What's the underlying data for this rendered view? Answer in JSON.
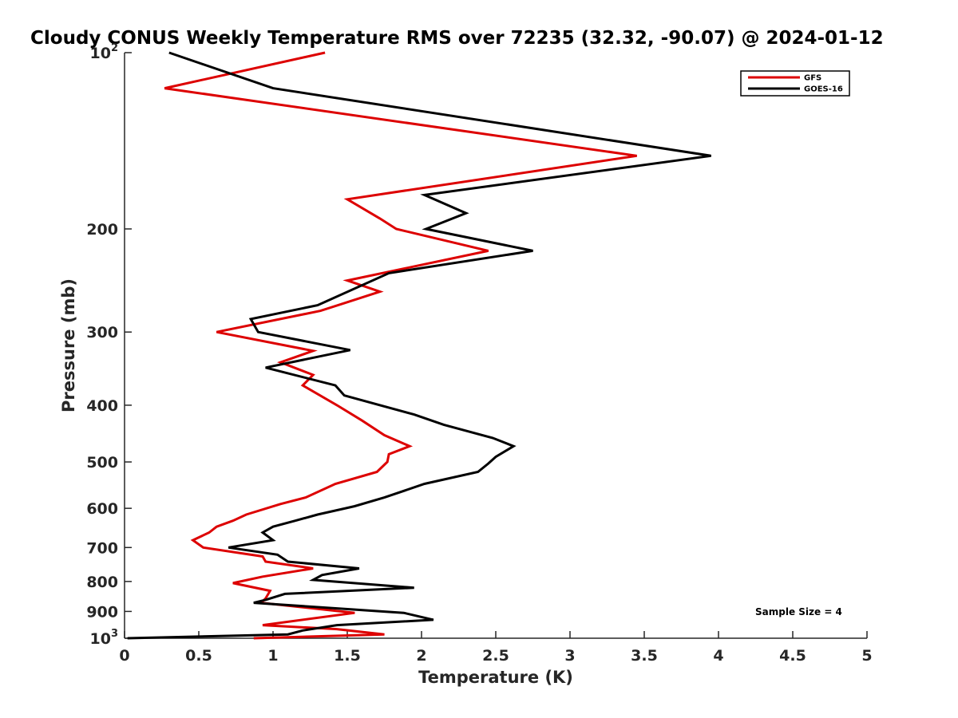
{
  "chart_data": {
    "type": "line",
    "title": "Cloudy CONUS Weekly Temperature RMS over 72235 (32.32, -90.07) @ 2024-01-12",
    "xlabel": "Temperature (K)",
    "ylabel": "Pressure (mb)",
    "xlim": [
      0,
      5
    ],
    "ylim": [
      100,
      1000
    ],
    "yscale": "log",
    "y_reversed": true,
    "grid": false,
    "legend_position": "top-right",
    "x_ticks": [
      0,
      0.5,
      1,
      1.5,
      2,
      2.5,
      3,
      3.5,
      4,
      4.5,
      5
    ],
    "x_tick_labels": [
      "0",
      "0.5",
      "1",
      "1.5",
      "2",
      "2.5",
      "3",
      "3.5",
      "4",
      "4.5",
      "5"
    ],
    "y_ticks": [
      100,
      200,
      300,
      400,
      500,
      600,
      700,
      800,
      900,
      1000
    ],
    "y_tick_labels": [
      {
        "base": "10",
        "exp": "2"
      },
      {
        "base": "200",
        "exp": ""
      },
      {
        "base": "300",
        "exp": ""
      },
      {
        "base": "400",
        "exp": ""
      },
      {
        "base": "500",
        "exp": ""
      },
      {
        "base": "600",
        "exp": ""
      },
      {
        "base": "700",
        "exp": ""
      },
      {
        "base": "800",
        "exp": ""
      },
      {
        "base": "900",
        "exp": ""
      },
      {
        "base": "10",
        "exp": "3"
      }
    ],
    "annotation": "Sample Size = 4",
    "series": [
      {
        "name": "GFS",
        "color": "#dd0000",
        "points": [
          [
            1.35,
            100
          ],
          [
            0.27,
            115
          ],
          [
            3.45,
            150
          ],
          [
            1.5,
            178
          ],
          [
            1.72,
            192
          ],
          [
            1.83,
            200
          ],
          [
            2.45,
            218
          ],
          [
            1.5,
            245
          ],
          [
            1.72,
            256
          ],
          [
            1.32,
            276
          ],
          [
            0.62,
            300
          ],
          [
            1.27,
            323
          ],
          [
            1.05,
            338
          ],
          [
            1.27,
            355
          ],
          [
            1.2,
            370
          ],
          [
            1.43,
            400
          ],
          [
            1.6,
            425
          ],
          [
            1.75,
            450
          ],
          [
            1.92,
            470
          ],
          [
            1.78,
            485
          ],
          [
            1.77,
            500
          ],
          [
            1.7,
            520
          ],
          [
            1.42,
            545
          ],
          [
            1.22,
            575
          ],
          [
            1.05,
            590
          ],
          [
            0.82,
            615
          ],
          [
            0.73,
            630
          ],
          [
            0.62,
            645
          ],
          [
            0.57,
            660
          ],
          [
            0.46,
            680
          ],
          [
            0.53,
            700
          ],
          [
            0.93,
            725
          ],
          [
            0.95,
            740
          ],
          [
            1.27,
            760
          ],
          [
            0.93,
            785
          ],
          [
            0.73,
            805
          ],
          [
            0.98,
            830
          ],
          [
            0.95,
            855
          ],
          [
            0.92,
            870
          ],
          [
            1.55,
            905
          ],
          [
            0.93,
            950
          ],
          [
            1.43,
            965
          ],
          [
            1.75,
            985
          ],
          [
            0.87,
            1000
          ]
        ]
      },
      {
        "name": "GOES-16",
        "color": "#000000",
        "points": [
          [
            0.3,
            100
          ],
          [
            1.0,
            115
          ],
          [
            3.95,
            150
          ],
          [
            2.02,
            175
          ],
          [
            2.3,
            188
          ],
          [
            2.03,
            200
          ],
          [
            2.75,
            218
          ],
          [
            1.78,
            238
          ],
          [
            1.3,
            270
          ],
          [
            0.85,
            285
          ],
          [
            0.9,
            300
          ],
          [
            1.52,
            322
          ],
          [
            0.95,
            345
          ],
          [
            1.42,
            370
          ],
          [
            1.48,
            385
          ],
          [
            1.95,
            415
          ],
          [
            2.15,
            432
          ],
          [
            2.48,
            455
          ],
          [
            2.62,
            470
          ],
          [
            2.5,
            490
          ],
          [
            2.45,
            503
          ],
          [
            2.38,
            520
          ],
          [
            2.02,
            545
          ],
          [
            1.75,
            575
          ],
          [
            1.55,
            595
          ],
          [
            1.3,
            615
          ],
          [
            1.15,
            630
          ],
          [
            1.0,
            645
          ],
          [
            0.93,
            660
          ],
          [
            1.0,
            680
          ],
          [
            0.7,
            700
          ],
          [
            1.03,
            720
          ],
          [
            1.1,
            740
          ],
          [
            1.58,
            760
          ],
          [
            1.33,
            780
          ],
          [
            1.27,
            795
          ],
          [
            1.95,
            820
          ],
          [
            1.08,
            840
          ],
          [
            0.95,
            860
          ],
          [
            0.87,
            870
          ],
          [
            1.88,
            905
          ],
          [
            2.08,
            930
          ],
          [
            1.43,
            950
          ],
          [
            1.2,
            970
          ],
          [
            1.1,
            985
          ],
          [
            0.02,
            1000
          ]
        ]
      }
    ]
  }
}
